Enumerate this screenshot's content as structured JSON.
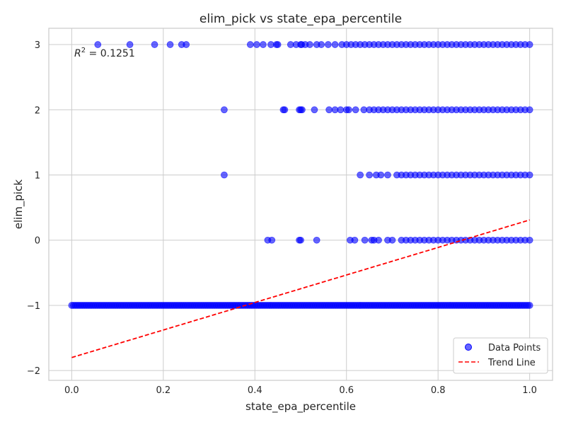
{
  "chart_data": {
    "type": "scatter",
    "title": "elim_pick vs state_epa_percentile",
    "xlabel": "state_epa_percentile",
    "ylabel": "elim_pick",
    "xlim": [
      -0.05,
      1.05
    ],
    "ylim": [
      -2.15,
      3.25
    ],
    "x_ticks": [
      0.0,
      0.2,
      0.4,
      0.6,
      0.8,
      1.0
    ],
    "x_tick_labels": [
      "0.0",
      "0.2",
      "0.4",
      "0.6",
      "0.8",
      "1.0"
    ],
    "y_ticks": [
      -2,
      -1,
      0,
      1,
      2,
      3
    ],
    "y_tick_labels": [
      "−2",
      "−1",
      "0",
      "1",
      "2",
      "3"
    ],
    "grid": true,
    "legend_position": "bottom-right",
    "annotation": {
      "r2_label": "R",
      "r2_superscript": "2",
      "r2_value": " = 0.1251"
    },
    "series": [
      {
        "name": "Data Points",
        "kind": "scatter",
        "color": "#0000ff",
        "groups": [
          {
            "y": 3,
            "x": [
              0.057,
              0.127,
              0.181,
              0.215,
              0.24,
              0.25,
              0.39,
              0.404,
              0.418,
              0.435,
              0.447,
              0.45,
              0.478,
              0.49,
              0.5,
              0.502,
              0.51,
              0.52,
              0.535,
              0.545,
              0.56,
              0.575,
              0.59,
              0.6,
              0.61,
              0.62,
              0.63,
              0.64,
              0.65,
              0.66,
              0.67,
              0.68,
              0.69,
              0.7,
              0.71,
              0.72,
              0.73,
              0.74,
              0.75,
              0.76,
              0.77,
              0.78,
              0.79,
              0.8,
              0.81,
              0.82,
              0.83,
              0.84,
              0.85,
              0.86,
              0.87,
              0.88,
              0.89,
              0.9,
              0.91,
              0.92,
              0.93,
              0.94,
              0.95,
              0.96,
              0.97,
              0.98,
              0.99,
              1.0
            ]
          },
          {
            "y": 2,
            "x": [
              0.333,
              0.462,
              0.465,
              0.497,
              0.5,
              0.503,
              0.53,
              0.562,
              0.575,
              0.587,
              0.6,
              0.605,
              0.62,
              0.638,
              0.65,
              0.66,
              0.67,
              0.68,
              0.69,
              0.7,
              0.71,
              0.72,
              0.73,
              0.74,
              0.75,
              0.76,
              0.77,
              0.78,
              0.79,
              0.8,
              0.81,
              0.82,
              0.83,
              0.84,
              0.85,
              0.86,
              0.87,
              0.88,
              0.89,
              0.9,
              0.91,
              0.92,
              0.93,
              0.94,
              0.95,
              0.96,
              0.97,
              0.98,
              0.99,
              1.0
            ]
          },
          {
            "y": 1,
            "x": [
              0.333,
              0.63,
              0.65,
              0.665,
              0.675,
              0.69,
              0.71,
              0.72,
              0.73,
              0.74,
              0.75,
              0.76,
              0.77,
              0.78,
              0.79,
              0.8,
              0.81,
              0.82,
              0.83,
              0.84,
              0.85,
              0.86,
              0.87,
              0.88,
              0.89,
              0.9,
              0.91,
              0.92,
              0.93,
              0.94,
              0.95,
              0.96,
              0.97,
              0.98,
              0.99,
              1.0
            ]
          },
          {
            "y": 0,
            "x": [
              0.428,
              0.437,
              0.497,
              0.5,
              0.535,
              0.608,
              0.618,
              0.64,
              0.655,
              0.66,
              0.67,
              0.69,
              0.7,
              0.72,
              0.73,
              0.74,
              0.75,
              0.76,
              0.77,
              0.78,
              0.79,
              0.8,
              0.81,
              0.82,
              0.83,
              0.84,
              0.85,
              0.86,
              0.87,
              0.88,
              0.89,
              0.9,
              0.91,
              0.92,
              0.93,
              0.94,
              0.95,
              0.96,
              0.97,
              0.98,
              0.99,
              1.0
            ]
          },
          {
            "y": -1,
            "x_range": [
              0.0,
              1.0
            ]
          }
        ]
      },
      {
        "name": "Trend Line",
        "kind": "line",
        "color": "#ff0000",
        "dash": "dashed",
        "x": [
          0.0,
          1.0
        ],
        "y": [
          -1.8,
          0.31
        ]
      }
    ]
  }
}
